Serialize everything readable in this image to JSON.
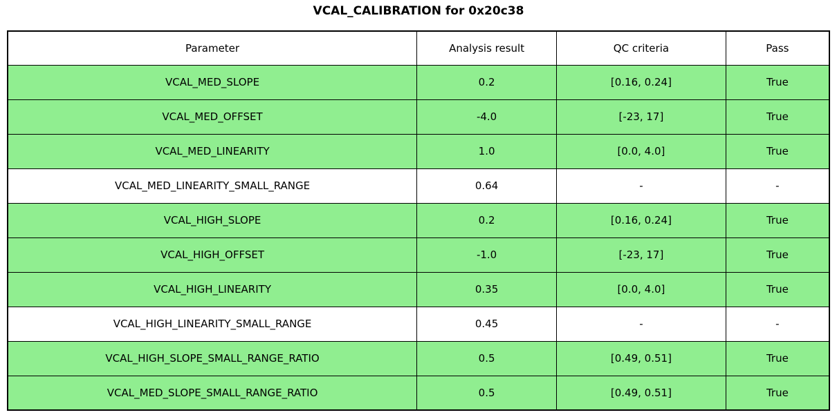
{
  "title": "VCAL_CALIBRATION for 0x20c38",
  "colors": {
    "row_pass_green": "#90EE90",
    "row_plain_white": "#FFFFFF",
    "border": "#000000",
    "text": "#000000"
  },
  "chart_data": {
    "type": "table",
    "title": "VCAL_CALIBRATION for 0x20c38",
    "columns": [
      "Parameter",
      "Analysis result",
      "QC criteria",
      "Pass"
    ],
    "rows": [
      {
        "parameter": "VCAL_MED_SLOPE",
        "analysis_result": "0.2",
        "qc_criteria": "[0.16, 0.24]",
        "pass": "True",
        "highlight": true
      },
      {
        "parameter": "VCAL_MED_OFFSET",
        "analysis_result": "-4.0",
        "qc_criteria": "[-23, 17]",
        "pass": "True",
        "highlight": true
      },
      {
        "parameter": "VCAL_MED_LINEARITY",
        "analysis_result": "1.0",
        "qc_criteria": "[0.0, 4.0]",
        "pass": "True",
        "highlight": true
      },
      {
        "parameter": "VCAL_MED_LINEARITY_SMALL_RANGE",
        "analysis_result": "0.64",
        "qc_criteria": "-",
        "pass": "-",
        "highlight": false
      },
      {
        "parameter": "VCAL_HIGH_SLOPE",
        "analysis_result": "0.2",
        "qc_criteria": "[0.16, 0.24]",
        "pass": "True",
        "highlight": true
      },
      {
        "parameter": "VCAL_HIGH_OFFSET",
        "analysis_result": "-1.0",
        "qc_criteria": "[-23, 17]",
        "pass": "True",
        "highlight": true
      },
      {
        "parameter": "VCAL_HIGH_LINEARITY",
        "analysis_result": "0.35",
        "qc_criteria": "[0.0, 4.0]",
        "pass": "True",
        "highlight": true
      },
      {
        "parameter": "VCAL_HIGH_LINEARITY_SMALL_RANGE",
        "analysis_result": "0.45",
        "qc_criteria": "-",
        "pass": "-",
        "highlight": false
      },
      {
        "parameter": "VCAL_HIGH_SLOPE_SMALL_RANGE_RATIO",
        "analysis_result": "0.5",
        "qc_criteria": "[0.49, 0.51]",
        "pass": "True",
        "highlight": true
      },
      {
        "parameter": "VCAL_MED_SLOPE_SMALL_RANGE_RATIO",
        "analysis_result": "0.5",
        "qc_criteria": "[0.49, 0.51]",
        "pass": "True",
        "highlight": true
      }
    ]
  }
}
